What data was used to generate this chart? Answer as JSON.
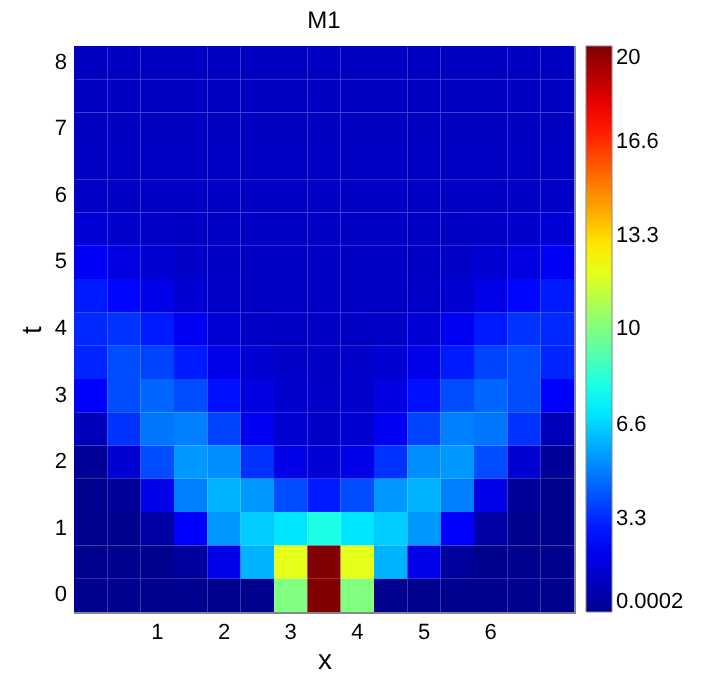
{
  "chart_data": {
    "type": "heatmap",
    "title": "M1",
    "xlabel": "x",
    "ylabel": "t",
    "categories": [
      null,
      null,
      "1",
      null,
      "2",
      null,
      "3",
      null,
      "4",
      null,
      "5",
      null,
      "6",
      null,
      null
    ],
    "y_categories": [
      "8",
      null,
      "7",
      null,
      "6",
      null,
      "5",
      null,
      "4",
      null,
      "3",
      null,
      "2",
      null,
      "1",
      null,
      "0"
    ],
    "cells": [
      [
        1.1,
        1.1,
        1.1,
        1.1,
        1.1,
        1.1,
        1.1,
        1.1,
        1.1,
        1.1,
        1.1,
        1.1,
        1.1,
        1.1,
        1.1
      ],
      [
        1.1,
        1.1,
        1.1,
        1.1,
        1.1,
        1.1,
        1.1,
        1.1,
        1.1,
        1.1,
        1.1,
        1.1,
        1.1,
        1.1,
        1.1
      ],
      [
        1.1,
        1.1,
        1.1,
        1.1,
        1.1,
        1.1,
        1.1,
        1.1,
        1.1,
        1.1,
        1.1,
        1.1,
        1.1,
        1.1,
        1.1
      ],
      [
        1.2,
        1.2,
        1.2,
        1.2,
        1.2,
        1.2,
        1.2,
        1.2,
        1.2,
        1.2,
        1.2,
        1.2,
        1.2,
        1.2,
        1.2
      ],
      [
        1.3,
        1.2,
        1.2,
        1.2,
        1.2,
        1.2,
        1.2,
        1.2,
        1.2,
        1.2,
        1.2,
        1.2,
        1.2,
        1.2,
        1.3
      ],
      [
        1.6,
        1.4,
        1.3,
        1.2,
        1.2,
        1.2,
        1.2,
        1.2,
        1.2,
        1.2,
        1.2,
        1.2,
        1.3,
        1.4,
        1.6
      ],
      [
        2.3,
        1.8,
        1.5,
        1.3,
        1.2,
        1.2,
        1.2,
        1.2,
        1.2,
        1.2,
        1.2,
        1.3,
        1.5,
        1.8,
        2.3
      ],
      [
        3,
        2.6,
        2,
        1.5,
        1.3,
        1.2,
        1.2,
        1.2,
        1.2,
        1.2,
        1.3,
        1.5,
        2,
        2.6,
        3
      ],
      [
        3.3,
        3.5,
        3,
        2.2,
        1.6,
        1.3,
        1.2,
        1.2,
        1.2,
        1.3,
        1.6,
        2.2,
        3,
        3.5,
        3.3
      ],
      [
        3.2,
        4,
        3.8,
        3,
        2,
        1.5,
        1.3,
        1.2,
        1.3,
        1.5,
        2,
        3,
        3.8,
        4,
        3.2
      ],
      [
        2.5,
        4,
        4.5,
        4,
        2.8,
        1.8,
        1.4,
        1.3,
        1.4,
        1.8,
        2.8,
        4,
        4.5,
        4,
        2.5
      ],
      [
        1,
        3.5,
        4.8,
        5,
        3.8,
        2.2,
        1.5,
        1.3,
        1.5,
        2.2,
        3.8,
        5,
        4.8,
        3.5,
        1
      ],
      [
        0.2,
        1.5,
        4,
        5.5,
        5.3,
        3.5,
        2,
        1.6,
        2,
        3.5,
        5.3,
        5.5,
        4,
        1.5,
        0.2
      ],
      [
        0.0002,
        0.2,
        2,
        5,
        6,
        5.5,
        4,
        3,
        4,
        5.5,
        6,
        5,
        2,
        0.2,
        0.0002
      ],
      [
        0.0002,
        0.0002,
        0.5,
        2.5,
        5.5,
        6.5,
        7,
        8,
        7,
        6.5,
        5.5,
        2.5,
        0.5,
        0.0002,
        0.0002
      ],
      [
        0.0002,
        0.0002,
        0.0002,
        0.3,
        2,
        6,
        12,
        20,
        12,
        6,
        2,
        0.3,
        0.0002,
        0.0002,
        0.0002
      ],
      [
        0.0002,
        0.0002,
        0.0002,
        0.0002,
        0.0002,
        0.0002,
        10,
        20,
        10,
        0.0002,
        0.0002,
        0.0002,
        0.0002,
        0.0002,
        0.0002
      ]
    ],
    "clim": [
      0.0002,
      20
    ],
    "cticks": [
      0.0002,
      3.3,
      6.6,
      10,
      13.3,
      16.6,
      20
    ]
  }
}
